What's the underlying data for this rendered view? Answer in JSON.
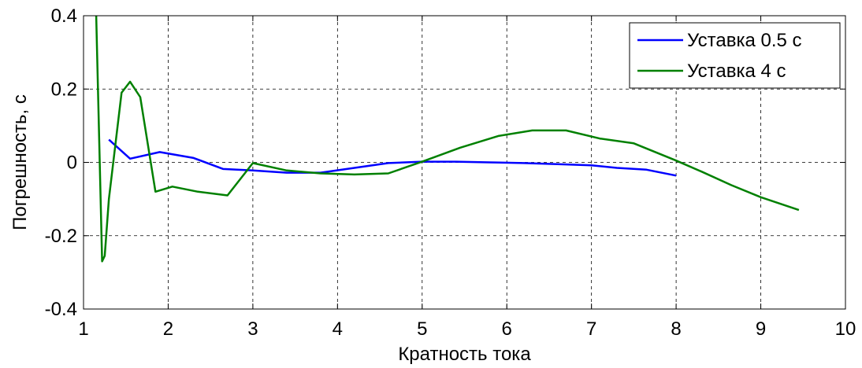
{
  "chart_data": {
    "type": "line",
    "title": "",
    "xlabel": "Кратность тока",
    "ylabel": "Погрешность, с",
    "xlim": [
      1,
      10
    ],
    "ylim": [
      -0.4,
      0.4
    ],
    "x_ticks": [
      1,
      2,
      3,
      4,
      5,
      6,
      7,
      8,
      9,
      10
    ],
    "y_ticks": [
      -0.4,
      -0.2,
      0,
      0.2,
      0.4
    ],
    "x_tick_labels": [
      "1",
      "2",
      "3",
      "4",
      "5",
      "6",
      "7",
      "8",
      "9",
      "10"
    ],
    "y_tick_labels": [
      "-0.4",
      "-0.2",
      "0",
      "0.2",
      "0.4"
    ],
    "grid": true,
    "legend_position": "top-right",
    "series": [
      {
        "name": "Уставка 0.5 с",
        "color": "#0000ff",
        "points": [
          [
            1.3,
            0.062
          ],
          [
            1.55,
            0.01
          ],
          [
            1.9,
            0.028
          ],
          [
            2.3,
            0.012
          ],
          [
            2.65,
            -0.018
          ],
          [
            3.0,
            -0.022
          ],
          [
            3.4,
            -0.028
          ],
          [
            3.8,
            -0.028
          ],
          [
            4.2,
            -0.015
          ],
          [
            4.6,
            -0.002
          ],
          [
            5.0,
            0.002
          ],
          [
            5.4,
            0.002
          ],
          [
            5.8,
            0.0
          ],
          [
            6.2,
            -0.002
          ],
          [
            6.6,
            -0.005
          ],
          [
            7.0,
            -0.008
          ],
          [
            7.3,
            -0.015
          ],
          [
            7.65,
            -0.02
          ],
          [
            8.0,
            -0.036
          ]
        ]
      },
      {
        "name": "Уставка 4 с",
        "color": "#008000",
        "points": [
          [
            1.15,
            0.4
          ],
          [
            1.22,
            -0.27
          ],
          [
            1.25,
            -0.255
          ],
          [
            1.3,
            -0.1
          ],
          [
            1.45,
            0.19
          ],
          [
            1.55,
            0.22
          ],
          [
            1.67,
            0.178
          ],
          [
            1.85,
            -0.08
          ],
          [
            2.05,
            -0.066
          ],
          [
            2.35,
            -0.08
          ],
          [
            2.7,
            -0.09
          ],
          [
            3.0,
            -0.002
          ],
          [
            3.4,
            -0.022
          ],
          [
            3.8,
            -0.03
          ],
          [
            4.2,
            -0.033
          ],
          [
            4.6,
            -0.03
          ],
          [
            5.0,
            0.002
          ],
          [
            5.45,
            0.04
          ],
          [
            5.9,
            0.072
          ],
          [
            6.3,
            0.087
          ],
          [
            6.7,
            0.087
          ],
          [
            7.1,
            0.065
          ],
          [
            7.5,
            0.052
          ],
          [
            8.0,
            0.005
          ],
          [
            8.3,
            -0.025
          ],
          [
            8.65,
            -0.062
          ],
          [
            9.0,
            -0.095
          ],
          [
            9.45,
            -0.13
          ]
        ]
      }
    ]
  }
}
